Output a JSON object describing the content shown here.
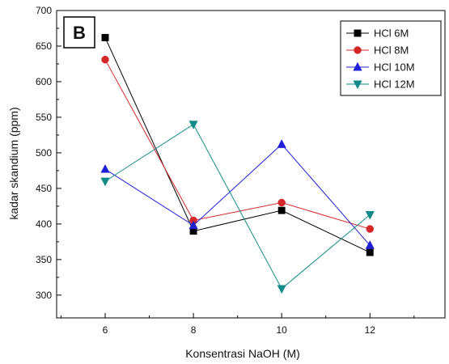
{
  "chart_data": {
    "type": "line",
    "panel_label": "B",
    "xlabel": "Konsentrasi NaOH (M)",
    "ylabel": "kadar skandium (ppm)",
    "x": [
      6,
      8,
      10,
      12
    ],
    "xticks": [
      6,
      8,
      10,
      12
    ],
    "xlim": [
      4.9,
      13.7
    ],
    "yticks": [
      300,
      350,
      400,
      450,
      500,
      550,
      600,
      650,
      700
    ],
    "ylim": [
      268,
      700
    ],
    "grid": false,
    "legend_position": "top-right",
    "series": [
      {
        "name": "HCl 6M",
        "color": "#000000",
        "marker": "square",
        "values": [
          662,
          390,
          419,
          360
        ]
      },
      {
        "name": "HCl 8M",
        "color": "#d62728",
        "marker": "circle",
        "values": [
          631,
          405,
          430,
          393
        ]
      },
      {
        "name": "HCl 10M",
        "color": "#1f1fd6",
        "marker": "triangle-up",
        "values": [
          477,
          398,
          512,
          370
        ]
      },
      {
        "name": "HCl 12M",
        "color": "#138a8a",
        "marker": "triangle-down",
        "values": [
          460,
          540,
          309,
          413
        ]
      }
    ]
  }
}
